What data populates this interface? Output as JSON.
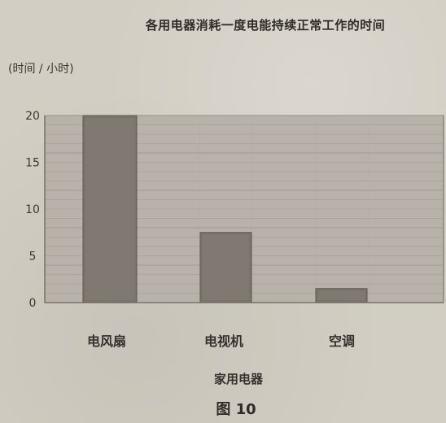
{
  "chart_data": {
    "type": "bar",
    "title": "各用电器消耗一度电能持续正常工作的时间",
    "ylabel": "(时间 / 小时)",
    "xlabel": "家用电器",
    "categories": [
      "电风扇",
      "电视机",
      "空调"
    ],
    "values": [
      20,
      7.5,
      1.5
    ],
    "y_ticks": [
      0,
      5,
      10,
      15,
      20
    ],
    "ylim": [
      0,
      20
    ],
    "grid": true,
    "legend": "none",
    "colors": {
      "bar": "#7b746d",
      "plot_bg": "#b8b2aa",
      "grid": "#9f988f",
      "axis": "#6b655f"
    }
  },
  "figure": {
    "caption": "图 10"
  }
}
